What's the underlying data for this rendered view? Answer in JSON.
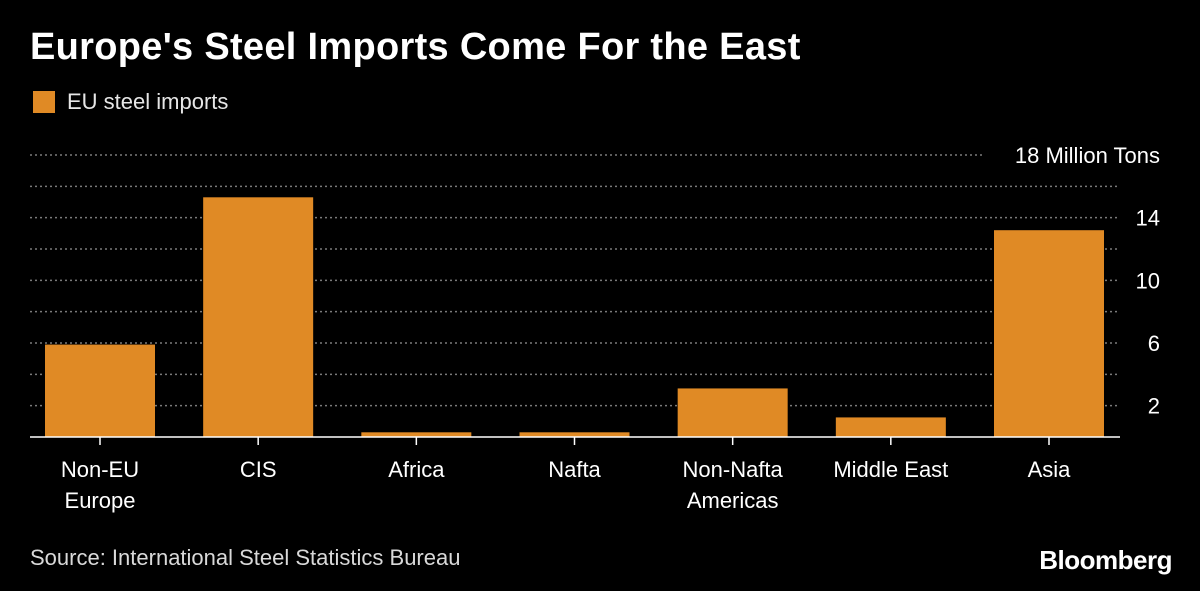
{
  "header": {
    "title": "Europe's Steel Imports Come For the East"
  },
  "legend": {
    "label": "EU steel imports"
  },
  "footer": {
    "source": "Source: International Steel Statistics Bureau",
    "brand": "Bloomberg"
  },
  "colors": {
    "bar": "#e08a25",
    "background": "#000000",
    "grid": "#7a7a7a",
    "text": "#ffffff",
    "axis": "#ffffff"
  },
  "chart_data": {
    "type": "bar",
    "categories": [
      [
        "Non-EU",
        "Europe"
      ],
      [
        "CIS"
      ],
      [
        "Africa"
      ],
      [
        "Nafta"
      ],
      [
        "Non-Nafta",
        "Americas"
      ],
      [
        "Middle East"
      ],
      [
        "Asia"
      ]
    ],
    "series": [
      {
        "name": "EU steel imports",
        "values": [
          5.9,
          15.3,
          0.3,
          0.3,
          3.1,
          1.25,
          13.2
        ]
      }
    ],
    "ylim": [
      0,
      18
    ],
    "y_ticks": [
      2,
      6,
      10,
      14,
      18
    ],
    "y_tick_labels": [
      "2",
      "6",
      "10",
      "14",
      "18 Million Tons"
    ],
    "gridlines": [
      2,
      4,
      6,
      8,
      10,
      12,
      14,
      16,
      18
    ],
    "grid": true,
    "y_axis_position": "right",
    "legend_placement": "top-left",
    "xlabel": "",
    "ylabel": ""
  }
}
